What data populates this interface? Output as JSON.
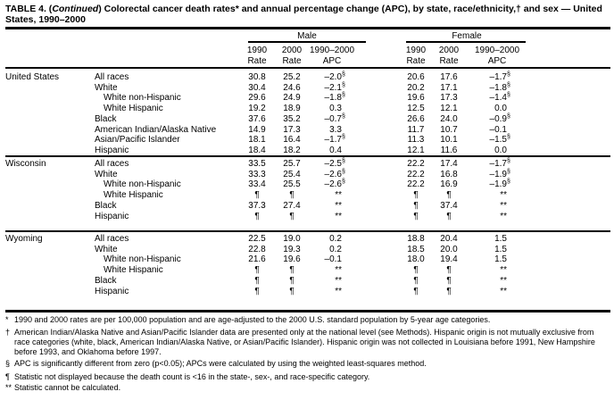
{
  "title": {
    "prefix": "TABLE 4. (",
    "italic": "Continued",
    "rest": ") Colorectal cancer death rates* and annual percentage change (APC), by state, race/ethnicity,† and sex — United States, 1990–2000"
  },
  "header": {
    "male": "Male",
    "female": "Female",
    "cols": [
      [
        "1990",
        "Rate"
      ],
      [
        "2000",
        "Rate"
      ],
      [
        "1990–2000",
        "APC"
      ],
      [
        "1990",
        "Rate"
      ],
      [
        "2000",
        "Rate"
      ],
      [
        "1990–2000",
        "APC"
      ]
    ]
  },
  "groups": [
    {
      "state": "United States",
      "rows": [
        {
          "race": "All races",
          "indent": 0,
          "m90": "30.8",
          "m00": "25.2",
          "mapc": "–2.0",
          "ms": "§",
          "f90": "20.6",
          "f00": "17.6",
          "fapc": "–1.7",
          "fs": "§"
        },
        {
          "race": "White",
          "indent": 0,
          "m90": "30.4",
          "m00": "24.6",
          "mapc": "–2.1",
          "ms": "§",
          "f90": "20.2",
          "f00": "17.1",
          "fapc": "–1.8",
          "fs": "§"
        },
        {
          "race": "White non-Hispanic",
          "indent": 1,
          "m90": "29.6",
          "m00": "24.9",
          "mapc": "–1.8",
          "ms": "§",
          "f90": "19.6",
          "f00": "17.3",
          "fapc": "–1.4",
          "fs": "§"
        },
        {
          "race": "White Hispanic",
          "indent": 1,
          "m90": "19.2",
          "m00": "18.9",
          "mapc": "0.3",
          "ms": "",
          "f90": "12.5",
          "f00": "12.1",
          "fapc": "0.0",
          "fs": ""
        },
        {
          "race": "Black",
          "indent": 0,
          "m90": "37.6",
          "m00": "35.2",
          "mapc": "–0.7",
          "ms": "§",
          "f90": "26.6",
          "f00": "24.0",
          "fapc": "–0.9",
          "fs": "§"
        },
        {
          "race": "American Indian/Alaska Native",
          "indent": 0,
          "m90": "14.9",
          "m00": "17.3",
          "mapc": "3.3",
          "ms": "",
          "f90": "11.7",
          "f00": "10.7",
          "fapc": "–0.1",
          "fs": ""
        },
        {
          "race": "Asian/Pacific Islander",
          "indent": 0,
          "m90": "18.1",
          "m00": "16.4",
          "mapc": "–1.7",
          "ms": "§",
          "f90": "11.3",
          "f00": "10.1",
          "fapc": "–1.5",
          "fs": "§"
        },
        {
          "race": "Hispanic",
          "indent": 0,
          "m90": "18.4",
          "m00": "18.2",
          "mapc": "0.4",
          "ms": "",
          "f90": "12.1",
          "f00": "11.6",
          "fapc": "0.0",
          "fs": ""
        }
      ]
    },
    {
      "state": "Wisconsin",
      "rows": [
        {
          "race": "All races",
          "indent": 0,
          "m90": "33.5",
          "m00": "25.7",
          "mapc": "–2.5",
          "ms": "§",
          "f90": "22.2",
          "f00": "17.4",
          "fapc": "–1.7",
          "fs": "§"
        },
        {
          "race": "White",
          "indent": 0,
          "m90": "33.3",
          "m00": "25.4",
          "mapc": "–2.6",
          "ms": "§",
          "f90": "22.2",
          "f00": "16.8",
          "fapc": "–1.9",
          "fs": "§"
        },
        {
          "race": "White non-Hispanic",
          "indent": 1,
          "m90": "33.4",
          "m00": "25.5",
          "mapc": "–2.6",
          "ms": "§",
          "f90": "22.2",
          "f00": "16.9",
          "fapc": "–1.9",
          "fs": "§"
        },
        {
          "race": "White Hispanic",
          "indent": 1,
          "m90": "¶",
          "m00": "¶",
          "mapc": "**",
          "ms": "",
          "f90": "¶",
          "f00": "¶",
          "fapc": "**",
          "fs": ""
        },
        {
          "race": "Black",
          "indent": 0,
          "m90": "37.3",
          "m00": "27.4",
          "mapc": "**",
          "ms": "",
          "f90": "¶",
          "f00": "37.4",
          "fapc": "**",
          "fs": ""
        },
        {
          "race": "Hispanic",
          "indent": 0,
          "m90": "¶",
          "m00": "¶",
          "mapc": "**",
          "ms": "",
          "f90": "¶",
          "f00": "¶",
          "fapc": "**",
          "fs": ""
        }
      ]
    },
    {
      "state": "Wyoming",
      "rows": [
        {
          "race": "All races",
          "indent": 0,
          "m90": "22.5",
          "m00": "19.0",
          "mapc": "0.2",
          "ms": "",
          "f90": "18.8",
          "f00": "20.4",
          "fapc": "1.5",
          "fs": ""
        },
        {
          "race": "White",
          "indent": 0,
          "m90": "22.8",
          "m00": "19.3",
          "mapc": "0.2",
          "ms": "",
          "f90": "18.5",
          "f00": "20.0",
          "fapc": "1.5",
          "fs": ""
        },
        {
          "race": "White non-Hispanic",
          "indent": 1,
          "m90": "21.6",
          "m00": "19.6",
          "mapc": "–0.1",
          "ms": "",
          "f90": "18.0",
          "f00": "19.4",
          "fapc": "1.5",
          "fs": ""
        },
        {
          "race": "White Hispanic",
          "indent": 1,
          "m90": "¶",
          "m00": "¶",
          "mapc": "**",
          "ms": "",
          "f90": "¶",
          "f00": "¶",
          "fapc": "**",
          "fs": ""
        },
        {
          "race": "Black",
          "indent": 0,
          "m90": "¶",
          "m00": "¶",
          "mapc": "**",
          "ms": "",
          "f90": "¶",
          "f00": "¶",
          "fapc": "**",
          "fs": ""
        },
        {
          "race": "Hispanic",
          "indent": 0,
          "m90": "¶",
          "m00": "¶",
          "mapc": "**",
          "ms": "",
          "f90": "¶",
          "f00": "¶",
          "fapc": "**",
          "fs": ""
        }
      ]
    }
  ],
  "footnotes": [
    {
      "mark": "*",
      "text": "1990 and 2000 rates are per 100,000 population and are age-adjusted to the 2000 U.S. standard population by 5-year age categories."
    },
    {
      "mark": "†",
      "text": "American Indian/Alaska Native and Asian/Pacific Islander data are presented only at the national level (see Methods). Hispanic origin is not mutually exclusive from race categories (white, black, American Indian/Alaska Native, or Asian/Pacific Islander). Hispanic origin was not collected in Louisiana before 1991, New Hampshire before 1993, and Oklahoma before 1997."
    },
    {
      "mark": "§",
      "text": "APC is significantly different from zero (p<0.05); APCs were calculated by using the weighted least-squares method."
    },
    {
      "mark": "¶",
      "text": "Statistic not displayed because the death count is <16 in the state-, sex-, and race-specific category."
    },
    {
      "mark": "**",
      "text": "Statistic cannot be calculated."
    }
  ]
}
